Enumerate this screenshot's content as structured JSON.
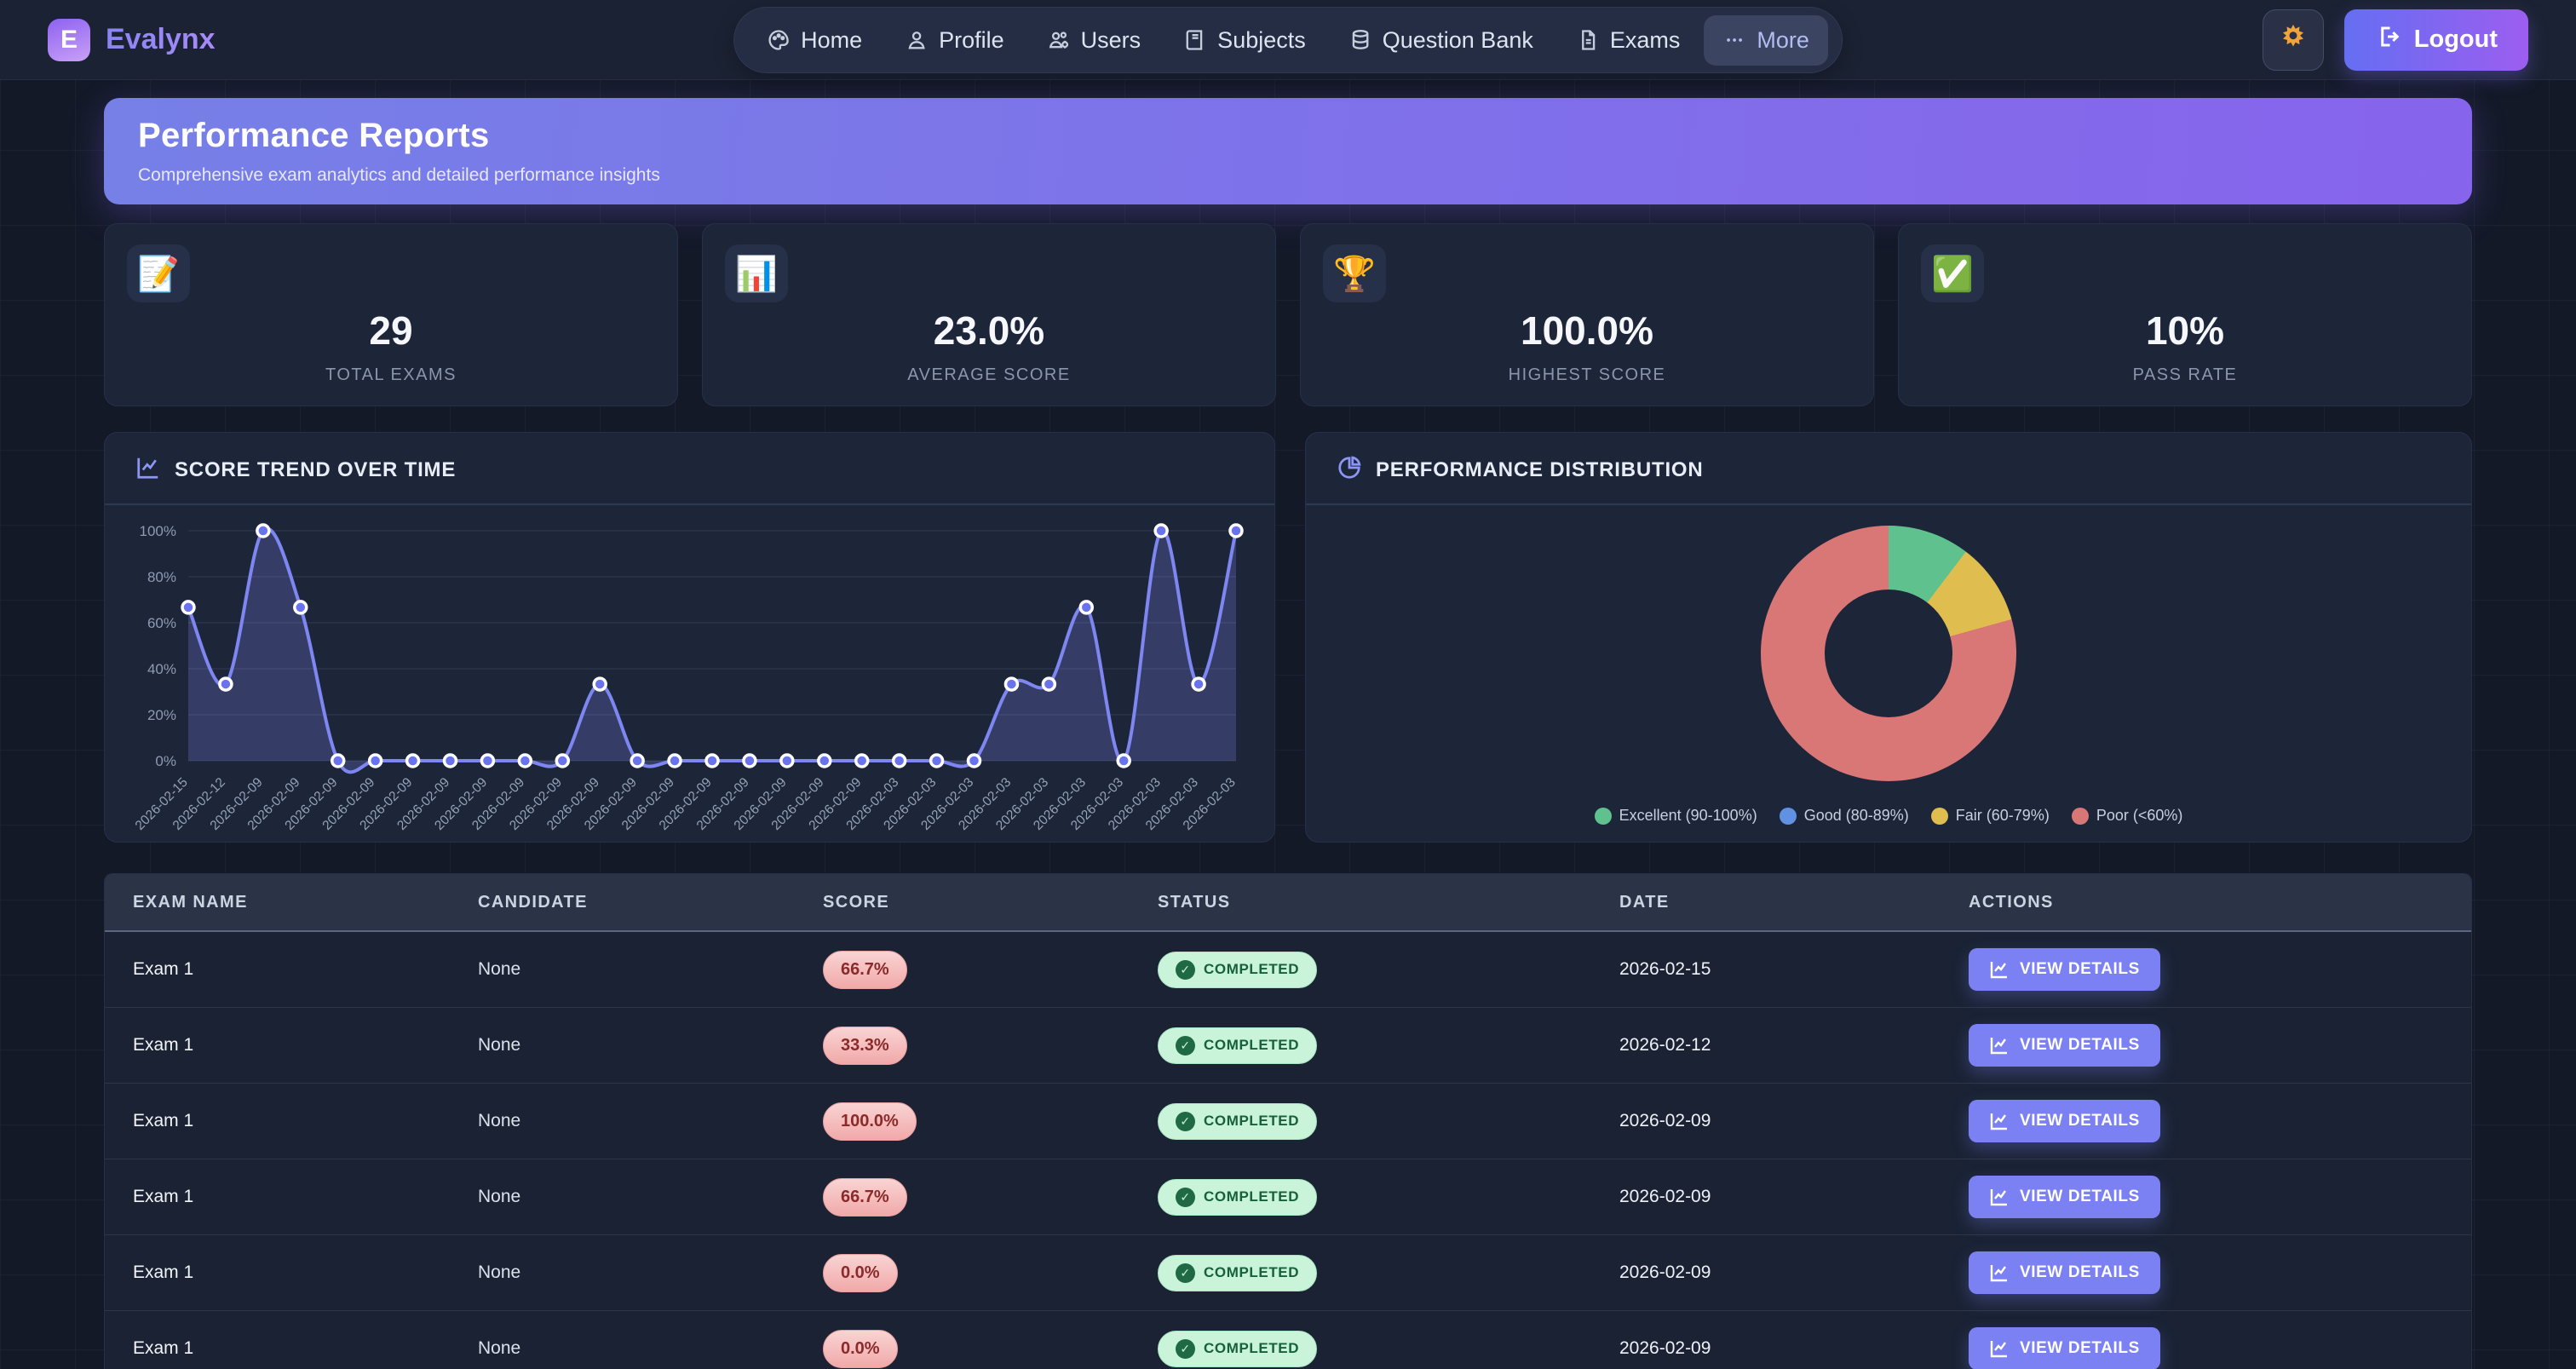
{
  "brand": {
    "logo_letter": "E",
    "name": "Evalynx"
  },
  "nav": {
    "items": [
      {
        "label": "Home",
        "icon": "palette-icon",
        "highlighted": false
      },
      {
        "label": "Profile",
        "icon": "user-icon",
        "highlighted": false
      },
      {
        "label": "Users",
        "icon": "users-gear-icon",
        "highlighted": false
      },
      {
        "label": "Subjects",
        "icon": "book-icon",
        "highlighted": false
      },
      {
        "label": "Question Bank",
        "icon": "database-icon",
        "highlighted": false
      },
      {
        "label": "Exams",
        "icon": "file-icon",
        "highlighted": false
      },
      {
        "label": "More",
        "icon": "ellipsis-icon",
        "highlighted": true
      }
    ]
  },
  "topbar": {
    "theme_icon": "sun-icon",
    "logout_label": "Logout"
  },
  "page_header": {
    "title": "Performance Reports",
    "subtitle": "Comprehensive exam analytics and detailed performance insights"
  },
  "stats": [
    {
      "icon": "memo-icon",
      "emoji": "📝",
      "value": "29",
      "label": "TOTAL EXAMS"
    },
    {
      "icon": "bar-chart-icon",
      "emoji": "📊",
      "value": "23.0%",
      "label": "AVERAGE SCORE"
    },
    {
      "icon": "trophy-icon",
      "emoji": "🏆",
      "value": "100.0%",
      "label": "HIGHEST SCORE"
    },
    {
      "icon": "check-icon",
      "emoji": "✅",
      "value": "10%",
      "label": "PASS RATE"
    }
  ],
  "chart_data": [
    {
      "type": "line",
      "title": "SCORE TREND OVER TIME",
      "title_icon": "chart-line-icon",
      "x": [
        "2026-02-15",
        "2026-02-12",
        "2026-02-09",
        "2026-02-09",
        "2026-02-09",
        "2026-02-09",
        "2026-02-09",
        "2026-02-09",
        "2026-02-09",
        "2026-02-09",
        "2026-02-09",
        "2026-02-09",
        "2026-02-09",
        "2026-02-09",
        "2026-02-09",
        "2026-02-09",
        "2026-02-09",
        "2026-02-09",
        "2026-02-09",
        "2026-02-03",
        "2026-02-03",
        "2026-02-03",
        "2026-02-03",
        "2026-02-03",
        "2026-02-03",
        "2026-02-03",
        "2026-02-03",
        "2026-02-03",
        "2026-02-03"
      ],
      "values": [
        66.7,
        33.3,
        100,
        66.7,
        0,
        0,
        0,
        0,
        0,
        0,
        0,
        33.3,
        0,
        0,
        0,
        0,
        0,
        0,
        0,
        0,
        0,
        0,
        33.3,
        33.3,
        66.7,
        0,
        100,
        33.3,
        100
      ],
      "ylim": [
        0,
        100
      ],
      "yticks": [
        "0%",
        "20%",
        "40%",
        "60%",
        "80%",
        "100%"
      ],
      "grid": true,
      "line_color": "#7e86f2",
      "fill_color": "rgba(126,134,242,0.25)",
      "point_fill": "#6a73ee",
      "point_stroke": "#ffffff"
    },
    {
      "type": "pie",
      "donut": true,
      "title": "PERFORMANCE DISTRIBUTION",
      "title_icon": "pie-icon",
      "legend_position": "bottom",
      "segments": [
        {
          "label": "Excellent (90-100%)",
          "value": 3,
          "percent": 10.3,
          "color": "#5fc28e"
        },
        {
          "label": "Good (80-89%)",
          "value": 0,
          "percent": 0,
          "color": "#6191e3"
        },
        {
          "label": "Fair (60-79%)",
          "value": 3,
          "percent": 10.3,
          "color": "#dfbd4f"
        },
        {
          "label": "Poor (<60%)",
          "value": 23,
          "percent": 79.4,
          "color": "#d97676"
        }
      ]
    }
  ],
  "table": {
    "headers": [
      "EXAM NAME",
      "CANDIDATE",
      "SCORE",
      "STATUS",
      "DATE",
      "ACTIONS"
    ],
    "action_label": "VIEW DETAILS",
    "rows": [
      {
        "exam": "Exam 1",
        "candidate": "None",
        "score": "66.7%",
        "status": "COMPLETED",
        "date": "2026-02-15"
      },
      {
        "exam": "Exam 1",
        "candidate": "None",
        "score": "33.3%",
        "status": "COMPLETED",
        "date": "2026-02-12"
      },
      {
        "exam": "Exam 1",
        "candidate": "None",
        "score": "100.0%",
        "status": "COMPLETED",
        "date": "2026-02-09"
      },
      {
        "exam": "Exam 1",
        "candidate": "None",
        "score": "66.7%",
        "status": "COMPLETED",
        "date": "2026-02-09"
      },
      {
        "exam": "Exam 1",
        "candidate": "None",
        "score": "0.0%",
        "status": "COMPLETED",
        "date": "2026-02-09"
      },
      {
        "exam": "Exam 1",
        "candidate": "None",
        "score": "0.0%",
        "status": "COMPLETED",
        "date": "2026-02-09"
      }
    ]
  }
}
